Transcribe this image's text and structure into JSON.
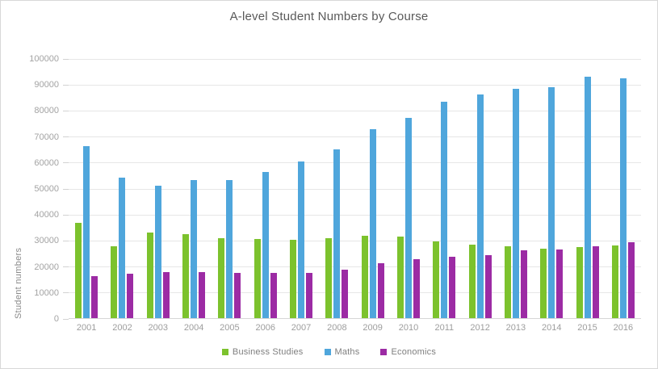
{
  "chart_data": {
    "type": "bar",
    "title": "A-level Student Numbers by Course",
    "xlabel": "",
    "ylabel": "Student numbers",
    "ylim": [
      0,
      100000
    ],
    "ytick_step": 10000,
    "grid": true,
    "legend_position": "bottom",
    "categories": [
      "2001",
      "2002",
      "2003",
      "2004",
      "2005",
      "2006",
      "2007",
      "2008",
      "2009",
      "2010",
      "2011",
      "2012",
      "2013",
      "2014",
      "2015",
      "2016"
    ],
    "series": [
      {
        "name": "Business Studies",
        "color": "#7cc22d",
        "values": [
          36800,
          27500,
          33000,
          32300,
          30800,
          30400,
          30100,
          30900,
          31600,
          31400,
          29600,
          28400,
          27500,
          26700,
          27300,
          28100
        ]
      },
      {
        "name": "Maths",
        "color": "#4fa6dc",
        "values": [
          66300,
          54000,
          50800,
          53000,
          53000,
          56200,
          60200,
          64800,
          72600,
          77000,
          83100,
          85900,
          88200,
          88900,
          92900,
          92300
        ]
      },
      {
        "name": "Economics",
        "color": "#9c2ba4",
        "values": [
          16100,
          17000,
          17800,
          17600,
          17500,
          17300,
          17400,
          18600,
          21000,
          22700,
          23600,
          24300,
          26100,
          26500,
          27500,
          29200
        ]
      }
    ]
  },
  "styles": {
    "title_color": "#595959",
    "axis_label_color": "#a3a3a3",
    "legend_text_color": "#7f7f7f",
    "gridline_color": "#e6e6e6",
    "axis_line_color": "#d6d6d6",
    "frame_border_color": "#d8d8d8",
    "background": "#ffffff"
  }
}
